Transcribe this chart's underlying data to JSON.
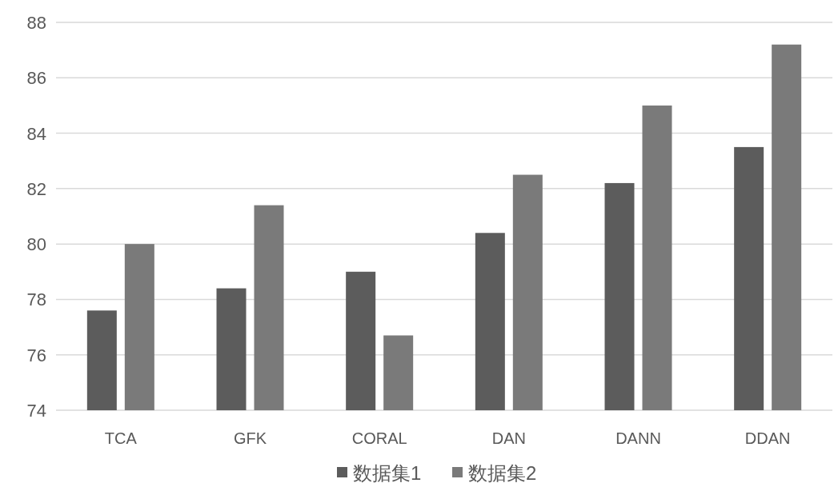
{
  "chart_data": {
    "type": "bar",
    "categories": [
      "TCA",
      "GFK",
      "CORAL",
      "DAN",
      "DANN",
      "DDAN"
    ],
    "series": [
      {
        "name": "数据集1",
        "color": "#5c5c5c",
        "values": [
          77.6,
          78.4,
          79.0,
          80.4,
          82.2,
          83.5
        ]
      },
      {
        "name": "数据集2",
        "color": "#7a7a7a",
        "values": [
          80.0,
          81.4,
          76.7,
          82.5,
          85.0,
          87.2
        ]
      }
    ],
    "ylim": [
      74,
      88
    ],
    "yticks": [
      74,
      76,
      78,
      80,
      82,
      84,
      86,
      88
    ],
    "grid": "y",
    "legend": "bottom"
  }
}
